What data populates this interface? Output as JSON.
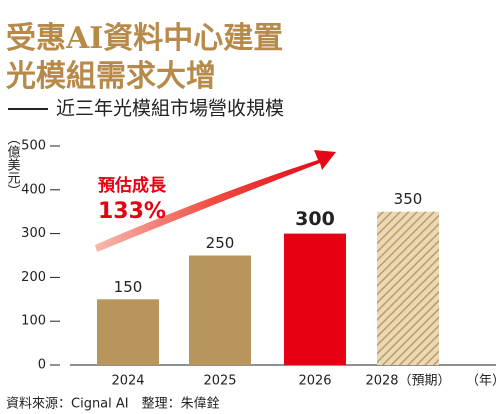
{
  "chart_data": {
    "type": "bar",
    "title": [
      "受惠AI資料中心建置",
      "光模組需求大增"
    ],
    "subtitle": "近三年光模組市場營收規模",
    "y_label": "（億美元）",
    "x_label": "（年）",
    "annotation": [
      "預估成長",
      "133%"
    ],
    "source": "資料來源：Cignal AI　整理：朱偉銓",
    "categories": [
      "2024",
      "2025",
      "2026",
      "2028（預期）"
    ],
    "values": [
      150,
      250,
      300,
      350
    ],
    "colors": [
      "#b8955b",
      "#b8955b",
      "#e60012",
      "#c9a66b"
    ],
    "hatched": [
      false,
      false,
      false,
      true
    ],
    "highlight": [
      false,
      false,
      true,
      false
    ],
    "ylim": [
      0,
      500
    ],
    "yticks": [
      0,
      100,
      200,
      300,
      400,
      500
    ]
  }
}
